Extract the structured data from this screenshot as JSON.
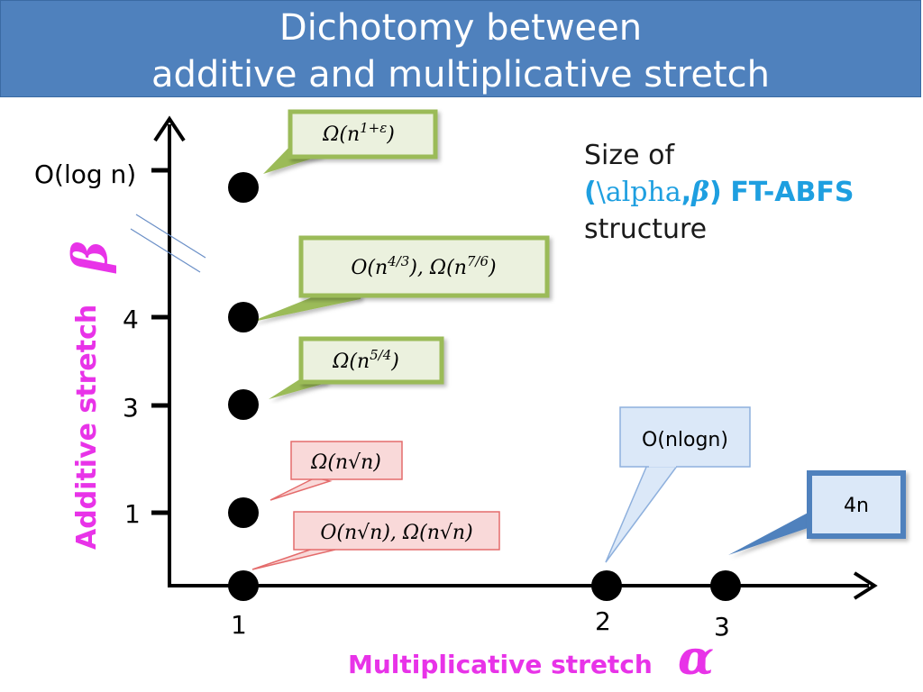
{
  "header": {
    "title_line1": "Dichotomy between",
    "title_line2": "additive and multiplicative stretch"
  },
  "axes": {
    "y_label": "Additive stretch",
    "y_symbol": "β",
    "x_label": "Multiplicative stretch",
    "x_symbol": "α",
    "y_ticks": [
      "O(log n)",
      "4",
      "3",
      "1"
    ],
    "x_ticks": [
      "1",
      "2",
      "3"
    ]
  },
  "callouts": {
    "logn": "Ω(n^(1+ε))",
    "four": "O(n^(4/3)), Ω(n^(7/6))",
    "three": "Ω(n^(5/4))",
    "one": "Ω(n√n)",
    "zero": "O(n√n), Ω(n√n)",
    "two_x": "O(nlogn)",
    "three_x": "4n"
  },
  "note": {
    "line1": "Size of",
    "paren_open": "(",
    "alpha_text": "\\alpha",
    "comma": ",",
    "beta": "β",
    "paren_close": ")",
    "label": "FT-ABFS",
    "line3": "structure"
  },
  "colors": {
    "header_bg": "#4f81bd",
    "green_fill": "#ebf1de",
    "green_border": "#9bbb59",
    "pink_fill": "#f9d9d9",
    "pink_border": "#e46c6c",
    "blue_fill": "#dbe8f8",
    "blue_border": "#4f81bd",
    "magenta": "#e833e8",
    "accent": "#1e9fe0"
  }
}
